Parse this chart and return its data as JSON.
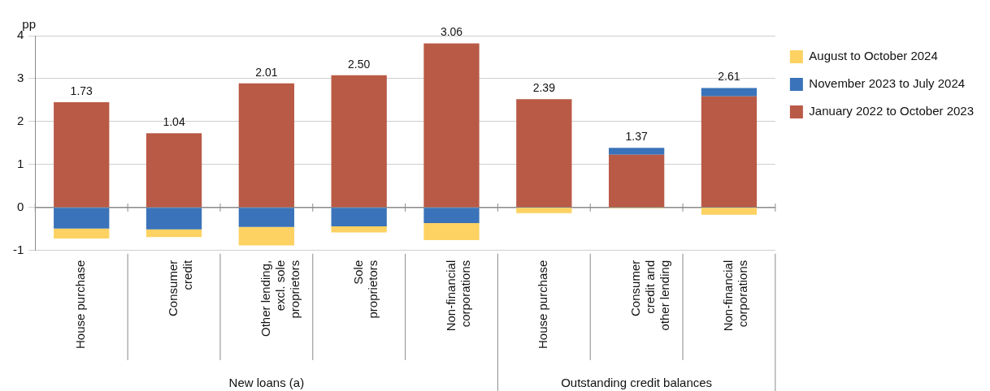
{
  "chart_data": {
    "type": "bar",
    "stacked": true,
    "categories": [
      "House purchase",
      "Consumer credit",
      "Other lending, excl. sole proprietors",
      "Sole proprietors",
      "Non-financial corporations",
      "House purchase",
      "Consumer credit and other lending",
      "Non-financial corporations"
    ],
    "series": [
      {
        "name": "January 2022 to October 2023",
        "color": "#b95a46",
        "values": [
          2.45,
          1.73,
          2.89,
          3.08,
          3.82,
          2.52,
          1.23,
          2.59
        ]
      },
      {
        "name": "November 2023 to July 2024",
        "color": "#3a73b9",
        "values": [
          -0.49,
          -0.51,
          -0.45,
          -0.44,
          -0.36,
          0,
          0.16,
          0.19
        ]
      },
      {
        "name": "August to October 2024",
        "color": "#fdd262",
        "values": [
          -0.23,
          -0.18,
          -0.43,
          -0.14,
          -0.4,
          -0.13,
          -0.02,
          -0.17
        ]
      }
    ],
    "totals": [
      "1.73",
      "1.04",
      "2.01",
      "2.50",
      "3.06",
      "2.39",
      "1.37",
      "2.61"
    ],
    "ylabel": "pp",
    "ylim": [
      -1,
      4
    ],
    "yticks": [
      -1,
      0,
      1,
      2,
      3,
      4
    ],
    "grid": "y",
    "legend": "top right",
    "annotations": [
      "New loans (a)",
      "Outstanding credit balances"
    ]
  }
}
